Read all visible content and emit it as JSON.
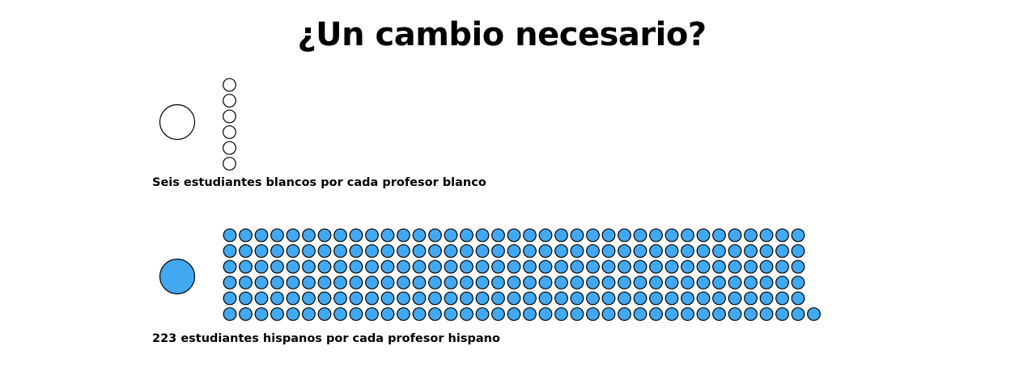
{
  "chart_data": {
    "type": "pictograph",
    "title": "¿Un cambio necesario?",
    "groups": [
      {
        "id": "white",
        "caption": "Seis estudiantes blancos por cada profesor blanco",
        "teachers": 1,
        "students": 6,
        "fill": "#ffffff",
        "stroke": "#000000"
      },
      {
        "id": "hispanic",
        "caption": "223 estudiantes hispanos por cada profesor hispano",
        "teachers": 1,
        "students": 223,
        "fill": "#42a8f0",
        "stroke": "#000000"
      }
    ]
  }
}
